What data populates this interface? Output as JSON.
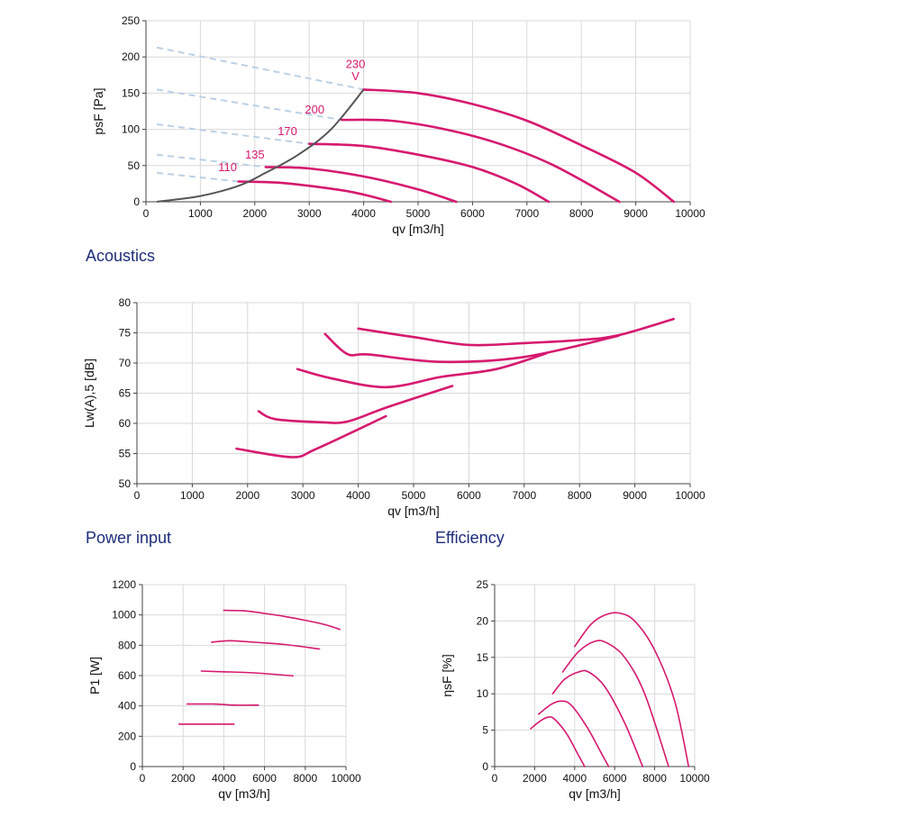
{
  "sections": {
    "acoustics": "Acoustics",
    "power": "Power input",
    "efficiency": "Efficiency"
  },
  "colors": {
    "curve": "#d6196f",
    "envelope": "#555555",
    "dashed": "#bcd0e4",
    "section": "#1f2d7a"
  },
  "chart_data": [
    {
      "id": "pressure",
      "type": "line",
      "xlabel": "qv [m3/h]",
      "ylabel": "psF [Pa]",
      "xlim": [
        0,
        10000
      ],
      "ylim": [
        0,
        250
      ],
      "xticks": [
        0,
        1000,
        2000,
        3000,
        4000,
        5000,
        6000,
        7000,
        8000,
        9000,
        10000
      ],
      "yticks": [
        0,
        50,
        100,
        150,
        200,
        250
      ],
      "grid": true,
      "series": [
        {
          "name": "230 V",
          "points": [
            [
              4000,
              155
            ],
            [
              5000,
              150
            ],
            [
              6000,
              135
            ],
            [
              7000,
              112
            ],
            [
              8000,
              78
            ],
            [
              9000,
              40
            ],
            [
              9700,
              0
            ]
          ]
        },
        {
          "name": "200",
          "points": [
            [
              3600,
              113
            ],
            [
              4500,
              112
            ],
            [
              5500,
              100
            ],
            [
              6500,
              80
            ],
            [
              7500,
              50
            ],
            [
              8700,
              0
            ]
          ]
        },
        {
          "name": "170",
          "points": [
            [
              3000,
              80
            ],
            [
              4000,
              77
            ],
            [
              5000,
              65
            ],
            [
              6000,
              48
            ],
            [
              6800,
              25
            ],
            [
              7400,
              0
            ]
          ]
        },
        {
          "name": "135",
          "points": [
            [
              2200,
              48
            ],
            [
              3000,
              46
            ],
            [
              4000,
              35
            ],
            [
              5000,
              17
            ],
            [
              5700,
              0
            ]
          ]
        },
        {
          "name": "110",
          "points": [
            [
              1700,
              28
            ],
            [
              2500,
              26
            ],
            [
              3500,
              17
            ],
            [
              4000,
              10
            ],
            [
              4500,
              0
            ]
          ]
        }
      ],
      "envelope": [
        [
          200,
          0
        ],
        [
          1000,
          8
        ],
        [
          1700,
          22
        ],
        [
          2200,
          40
        ],
        [
          2800,
          65
        ],
        [
          3400,
          100
        ],
        [
          4000,
          155
        ]
      ],
      "dashed_lines": [
        [
          [
            200,
            213
          ],
          [
            4000,
            155
          ]
        ],
        [
          [
            200,
            155
          ],
          [
            3600,
            113
          ]
        ],
        [
          [
            200,
            107
          ],
          [
            3000,
            80
          ]
        ],
        [
          [
            200,
            65
          ],
          [
            2200,
            48
          ]
        ],
        [
          [
            200,
            40
          ],
          [
            1700,
            28
          ]
        ]
      ],
      "labels": [
        {
          "text": "230",
          "x": 3850,
          "y": 185
        },
        {
          "text": "V",
          "x": 3850,
          "y": 168
        },
        {
          "text": "200",
          "x": 3100,
          "y": 122
        },
        {
          "text": "170",
          "x": 2600,
          "y": 92
        },
        {
          "text": "135",
          "x": 2000,
          "y": 60
        },
        {
          "text": "110",
          "x": 1500,
          "y": 42
        }
      ]
    },
    {
      "id": "acoustics",
      "type": "line",
      "xlabel": "qv [m3/h]",
      "ylabel": "Lw(A),5 [dB]",
      "xlim": [
        0,
        10000
      ],
      "ylim": [
        50,
        80
      ],
      "xticks": [
        0,
        1000,
        2000,
        3000,
        4000,
        5000,
        6000,
        7000,
        8000,
        9000,
        10000
      ],
      "yticks": [
        50,
        55,
        60,
        65,
        70,
        75,
        80
      ],
      "grid": true,
      "series": [
        {
          "name": "230 V",
          "points": [
            [
              4000,
              75.7
            ],
            [
              5000,
              74.3
            ],
            [
              6000,
              73.0
            ],
            [
              7000,
              73.3
            ],
            [
              8000,
              73.8
            ],
            [
              8700,
              74.6
            ],
            [
              9700,
              77.3
            ]
          ]
        },
        {
          "name": "200",
          "points": [
            [
              3400,
              74.8
            ],
            [
              3800,
              71.5
            ],
            [
              4200,
              71.4
            ],
            [
              5500,
              70.2
            ],
            [
              7000,
              71.0
            ],
            [
              8700,
              74.5
            ]
          ]
        },
        {
          "name": "170",
          "points": [
            [
              2900,
              69.0
            ],
            [
              3500,
              67.5
            ],
            [
              4500,
              66.0
            ],
            [
              5500,
              67.7
            ],
            [
              6500,
              69.0
            ],
            [
              7400,
              71.6
            ]
          ]
        },
        {
          "name": "135",
          "points": [
            [
              2200,
              62.0
            ],
            [
              2500,
              60.7
            ],
            [
              3300,
              60.2
            ],
            [
              3800,
              60.3
            ],
            [
              4500,
              62.6
            ],
            [
              5700,
              66.2
            ]
          ]
        },
        {
          "name": "110",
          "points": [
            [
              1800,
              55.8
            ],
            [
              2800,
              54.4
            ],
            [
              3200,
              55.6
            ],
            [
              4000,
              59.0
            ],
            [
              4500,
              61.2
            ]
          ]
        }
      ]
    },
    {
      "id": "power",
      "type": "line",
      "xlabel": "qv [m3/h]",
      "ylabel": "P1 [W]",
      "xlim": [
        0,
        10000
      ],
      "ylim": [
        0,
        1200
      ],
      "xticks": [
        0,
        2000,
        4000,
        6000,
        8000,
        10000
      ],
      "yticks": [
        0,
        200,
        400,
        600,
        800,
        1000,
        1200
      ],
      "grid": true,
      "series": [
        {
          "name": "230 V",
          "points": [
            [
              4000,
              1030
            ],
            [
              5000,
              1027
            ],
            [
              6000,
              1010
            ],
            [
              7000,
              990
            ],
            [
              8000,
              965
            ],
            [
              9000,
              935
            ],
            [
              9700,
              905
            ]
          ]
        },
        {
          "name": "200",
          "points": [
            [
              3400,
              820
            ],
            [
              4300,
              830
            ],
            [
              5500,
              820
            ],
            [
              7000,
              805
            ],
            [
              8700,
              775
            ]
          ]
        },
        {
          "name": "170",
          "points": [
            [
              2900,
              630
            ],
            [
              4000,
              625
            ],
            [
              5500,
              618
            ],
            [
              7400,
              598
            ]
          ]
        },
        {
          "name": "135",
          "points": [
            [
              2200,
              412
            ],
            [
              3500,
              412
            ],
            [
              4500,
              405
            ],
            [
              5700,
              405
            ]
          ]
        },
        {
          "name": "110",
          "points": [
            [
              1800,
              280
            ],
            [
              4500,
              280
            ]
          ]
        }
      ]
    },
    {
      "id": "efficiency",
      "type": "line",
      "xlabel": "qv [m3/h]",
      "ylabel": "ηsF [%]",
      "xlim": [
        0,
        10000
      ],
      "ylim": [
        0,
        25
      ],
      "xticks": [
        0,
        2000,
        4000,
        6000,
        8000,
        10000
      ],
      "yticks": [
        0,
        5,
        10,
        15,
        20,
        25
      ],
      "grid": true,
      "series": [
        {
          "name": "230 V",
          "points": [
            [
              4000,
              16.5
            ],
            [
              4800,
              19.5
            ],
            [
              5500,
              20.8
            ],
            [
              6200,
              21.1
            ],
            [
              7000,
              20.0
            ],
            [
              8000,
              16
            ],
            [
              9000,
              9
            ],
            [
              9700,
              0
            ]
          ]
        },
        {
          "name": "200",
          "points": [
            [
              3400,
              13.0
            ],
            [
              4200,
              15.8
            ],
            [
              5000,
              17.2
            ],
            [
              5600,
              17.0
            ],
            [
              6500,
              15
            ],
            [
              7500,
              10
            ],
            [
              8700,
              0
            ]
          ]
        },
        {
          "name": "170",
          "points": [
            [
              2900,
              10.0
            ],
            [
              3500,
              12.0
            ],
            [
              4200,
              13.0
            ],
            [
              4700,
              13.0
            ],
            [
              5500,
              11
            ],
            [
              6500,
              6
            ],
            [
              7400,
              0
            ]
          ]
        },
        {
          "name": "135",
          "points": [
            [
              2200,
              7.2
            ],
            [
              2800,
              8.5
            ],
            [
              3300,
              9.0
            ],
            [
              3800,
              8.5
            ],
            [
              4600,
              5.5
            ],
            [
              5300,
              2
            ],
            [
              5700,
              0
            ]
          ]
        },
        {
          "name": "110",
          "points": [
            [
              1800,
              5.2
            ],
            [
              2300,
              6.3
            ],
            [
              2700,
              6.8
            ],
            [
              3000,
              6.5
            ],
            [
              3600,
              4.5
            ],
            [
              4200,
              1.5
            ],
            [
              4500,
              0
            ]
          ]
        }
      ]
    }
  ]
}
